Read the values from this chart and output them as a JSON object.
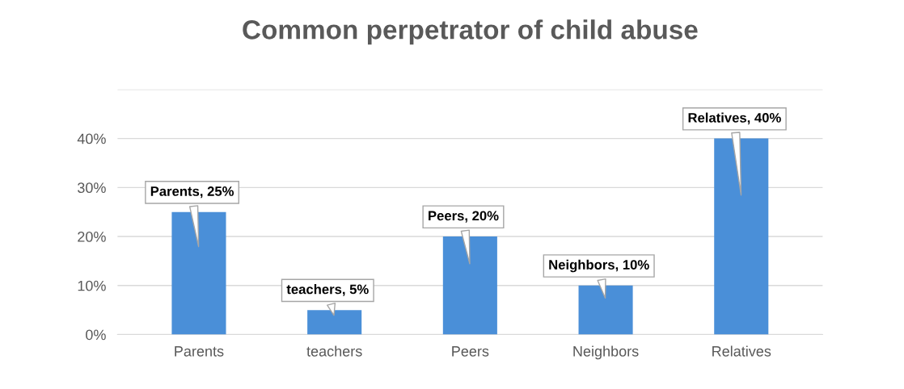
{
  "chart_data": {
    "type": "bar",
    "title": "Common perpetrator of child abuse",
    "categories": [
      "Parents",
      "teachers",
      "Peers",
      "Neighbors",
      "Relatives"
    ],
    "values": [
      25,
      5,
      20,
      10,
      40
    ],
    "value_labels": [
      "Parents, 25%",
      "teachers, 5%",
      "Peers, 20%",
      "Neighbors, 10%",
      "Relatives, 40%"
    ],
    "color": "#4a8fd8",
    "ylim": [
      0,
      50
    ],
    "yticks": [
      {
        "value": 0,
        "label": "0%"
      },
      {
        "value": 10,
        "label": "10%"
      },
      {
        "value": 20,
        "label": "20%"
      },
      {
        "value": 30,
        "label": "30%"
      },
      {
        "value": 40,
        "label": "40%"
      },
      {
        "value": 50,
        "label": null
      }
    ],
    "grid": "y",
    "legend": false
  }
}
